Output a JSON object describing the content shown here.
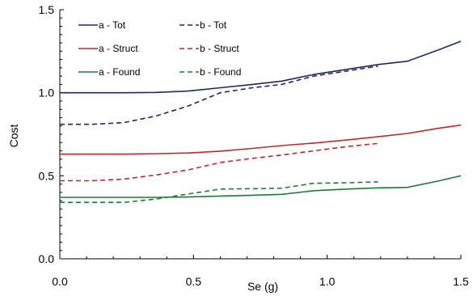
{
  "chart_data": {
    "type": "line",
    "title": "",
    "xlabel": "Se (g)",
    "ylabel": "Cost",
    "xlim": [
      0.0,
      1.5
    ],
    "ylim": [
      0.0,
      1.5
    ],
    "x_ticks": [
      "0.0",
      "0.5",
      "1.0",
      "1.5"
    ],
    "y_ticks": [
      "0.0",
      "0.5",
      "1.0",
      "1.5"
    ],
    "grid": false,
    "legend_placement": "top-left",
    "series": [
      {
        "name": "a - Tot",
        "color": "#1f2a5c",
        "dash": "solid",
        "x": [
          0.0,
          0.12,
          0.24,
          0.36,
          0.48,
          0.6,
          0.72,
          0.83,
          0.95,
          1.07,
          1.19,
          1.3,
          1.42,
          1.5
        ],
        "y": [
          1.0,
          1.0,
          1.0,
          1.002,
          1.01,
          1.03,
          1.05,
          1.07,
          1.11,
          1.14,
          1.17,
          1.19,
          1.26,
          1.31
        ]
      },
      {
        "name": "b - Tot",
        "color": "#1f2a5c",
        "dash": "dashed",
        "x": [
          0.0,
          0.12,
          0.24,
          0.36,
          0.48,
          0.6,
          0.72,
          0.83,
          0.95,
          1.07,
          1.19
        ],
        "y": [
          0.81,
          0.81,
          0.82,
          0.86,
          0.92,
          1.0,
          1.03,
          1.05,
          1.1,
          1.13,
          1.16
        ]
      },
      {
        "name": "a - Struct",
        "color": "#c0282d",
        "dash": "solid",
        "x": [
          0.0,
          0.12,
          0.24,
          0.36,
          0.48,
          0.6,
          0.72,
          0.83,
          0.95,
          1.07,
          1.19,
          1.3,
          1.42,
          1.5
        ],
        "y": [
          0.63,
          0.63,
          0.63,
          0.633,
          0.637,
          0.648,
          0.665,
          0.682,
          0.697,
          0.715,
          0.735,
          0.755,
          0.787,
          0.805
        ]
      },
      {
        "name": "b - Struct",
        "color": "#c0282d",
        "dash": "dashed",
        "x": [
          0.0,
          0.12,
          0.24,
          0.36,
          0.48,
          0.6,
          0.72,
          0.83,
          0.95,
          1.07,
          1.19
        ],
        "y": [
          0.47,
          0.47,
          0.48,
          0.505,
          0.535,
          0.58,
          0.605,
          0.625,
          0.65,
          0.675,
          0.695
        ]
      },
      {
        "name": "a - Found",
        "color": "#1e7a3a",
        "dash": "solid",
        "x": [
          0.0,
          0.12,
          0.24,
          0.36,
          0.48,
          0.6,
          0.72,
          0.83,
          0.95,
          1.07,
          1.19,
          1.3,
          1.42,
          1.5
        ],
        "y": [
          0.37,
          0.37,
          0.37,
          0.37,
          0.372,
          0.378,
          0.383,
          0.388,
          0.41,
          0.42,
          0.427,
          0.43,
          0.47,
          0.5
        ]
      },
      {
        "name": "b - Found",
        "color": "#1e7a3a",
        "dash": "dashed",
        "x": [
          0.0,
          0.12,
          0.24,
          0.36,
          0.48,
          0.6,
          0.72,
          0.83,
          0.95,
          1.07,
          1.19
        ],
        "y": [
          0.34,
          0.34,
          0.34,
          0.36,
          0.39,
          0.42,
          0.422,
          0.425,
          0.455,
          0.458,
          0.463
        ]
      }
    ]
  }
}
